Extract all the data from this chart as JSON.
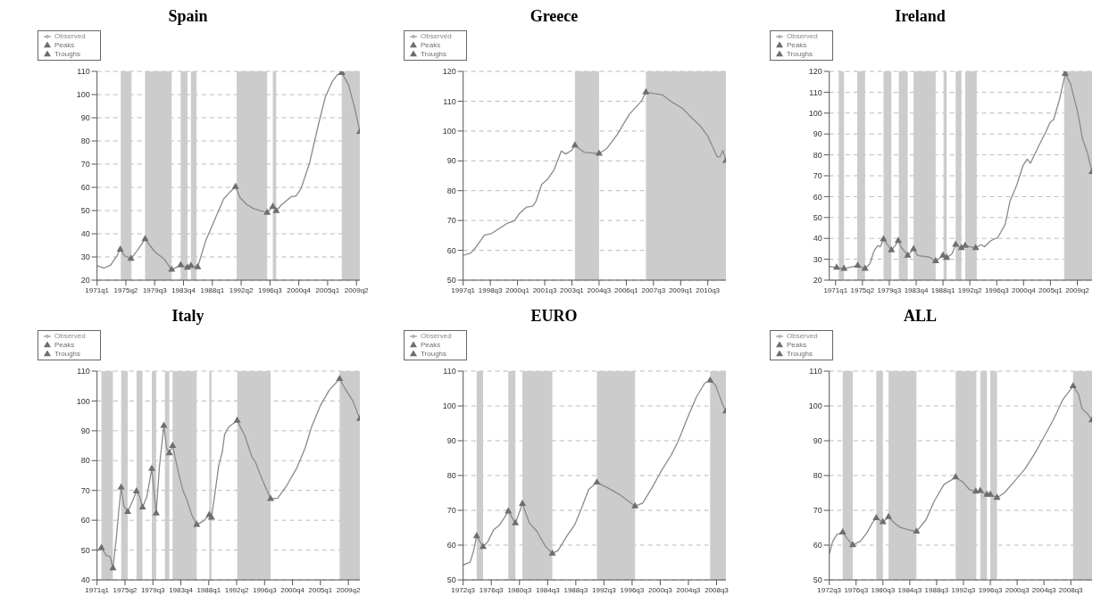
{
  "chart_data": [
    {
      "type": "line",
      "title": "Spain",
      "grid": "y",
      "legend": "top left",
      "xlim": [
        "1971-01",
        "2009-10"
      ],
      "ylim": [
        20,
        110
      ],
      "yticks": [
        20,
        30,
        40,
        50,
        60,
        70,
        80,
        90,
        100,
        110
      ],
      "xticks": [
        {
          "value": "1971-01",
          "label": "1971q1"
        },
        {
          "value": "1975-04",
          "label": "1975q2"
        },
        {
          "value": "1979-07",
          "label": "1979q3"
        },
        {
          "value": "1983-10",
          "label": "1983q4"
        },
        {
          "value": "1988-01",
          "label": "1988q1"
        },
        {
          "value": "1992-04",
          "label": "1992q2"
        },
        {
          "value": "1996-07",
          "label": "1996q3"
        },
        {
          "value": "2000-10",
          "label": "2000q4"
        },
        {
          "value": "2005-01",
          "label": "2005q1"
        },
        {
          "value": "2009-04",
          "label": "2009q2"
        }
      ],
      "bands": [
        {
          "axis": "x",
          "from": "1974-07",
          "to": "1976-02",
          "color": "#cccccc"
        },
        {
          "axis": "x",
          "from": "1978-02",
          "to": "1982-01",
          "color": "#cccccc"
        },
        {
          "axis": "x",
          "from": "1983-05",
          "to": "1984-05",
          "color": "#cccccc"
        },
        {
          "axis": "x",
          "from": "1984-11",
          "to": "1985-09",
          "color": "#cccccc"
        },
        {
          "axis": "x",
          "from": "1991-08",
          "to": "1996-02",
          "color": "#cccccc"
        },
        {
          "axis": "x",
          "from": "1996-12",
          "to": "1997-06",
          "color": "#cccccc"
        },
        {
          "axis": "x",
          "from": "2007-02",
          "to": "2009-10",
          "color": "#cccccc"
        }
      ],
      "series": [
        {
          "name": "Observed",
          "color": "#8a8a8a",
          "x": [
            "1971-01",
            "1972-01",
            "1973-01",
            "1973-12",
            "1974-06",
            "1975-02",
            "1976-01",
            "1977-01",
            "1978-02",
            "1979-07",
            "1980-12",
            "1982-01",
            "1983-05",
            "1984-05",
            "1984-11",
            "1985-11",
            "1987-01",
            "1988-05",
            "1989-09",
            "1990-09",
            "1991-06",
            "1992-02",
            "1993-02",
            "1994-02",
            "1996-02",
            "1996-12",
            "1997-06",
            "1998-03",
            "1999-08",
            "2000-05",
            "2001-02",
            "2002-05",
            "2003-09",
            "2004-09",
            "2005-09",
            "2006-06",
            "2007-02",
            "2008-02",
            "2009-02",
            "2009-10"
          ],
          "values": [
            26.2,
            25.2,
            26.5,
            30.4,
            33.2,
            30.4,
            29.3,
            33,
            37.7,
            32.3,
            29,
            24.5,
            26.5,
            25.4,
            26.2,
            25.6,
            36.8,
            46,
            55,
            58.2,
            60.2,
            55.6,
            52.6,
            50.8,
            49.1,
            51.7,
            49.8,
            52.4,
            55.9,
            56.3,
            59.5,
            70.5,
            87.4,
            99,
            105.5,
            108.5,
            109.4,
            104.2,
            93,
            84
          ]
        },
        {
          "name": "Peaks",
          "type": "scatter",
          "marker": "triangle",
          "color": "#6e6e6e",
          "x": [
            "1974-06",
            "1978-02",
            "1983-05",
            "1984-11",
            "1991-06",
            "1996-12",
            "2007-02"
          ],
          "values": [
            33.2,
            37.7,
            26.5,
            26.2,
            60.2,
            51.7,
            109.4
          ]
        },
        {
          "name": "Troughs",
          "type": "scatter",
          "marker": "triangle",
          "color": "#6e6e6e",
          "x": [
            "1976-01",
            "1982-01",
            "1984-05",
            "1985-11",
            "1996-02",
            "1997-06",
            "2009-10"
          ],
          "values": [
            29.3,
            24.5,
            25.4,
            25.6,
            49.1,
            49.8,
            84
          ]
        }
      ]
    },
    {
      "type": "line",
      "title": "Greece",
      "grid": "y",
      "legend": "top left",
      "xlim": [
        "1997-01",
        "2011-07"
      ],
      "ylim": [
        50,
        120
      ],
      "yticks": [
        50,
        60,
        70,
        80,
        90,
        100,
        110,
        120
      ],
      "xticks": [
        {
          "value": "1997-01",
          "label": "1997q1"
        },
        {
          "value": "1998-07",
          "label": "1998q3"
        },
        {
          "value": "2000-01",
          "label": "2000q1"
        },
        {
          "value": "2001-07",
          "label": "2001q3"
        },
        {
          "value": "2003-01",
          "label": "2003q1"
        },
        {
          "value": "2004-07",
          "label": "2004q3"
        },
        {
          "value": "2006-01",
          "label": "2006q1"
        },
        {
          "value": "2007-07",
          "label": "2007q3"
        },
        {
          "value": "2009-01",
          "label": "2009q1"
        },
        {
          "value": "2010-07",
          "label": "2010q3"
        }
      ],
      "bands": [
        {
          "axis": "x",
          "from": "2003-03",
          "to": "2004-07",
          "color": "#cccccc"
        },
        {
          "axis": "x",
          "from": "2007-02",
          "to": "2011-07",
          "color": "#cccccc"
        }
      ],
      "series": [
        {
          "name": "Observed",
          "color": "#8a8a8a",
          "x": [
            "1997-01",
            "1997-06",
            "1997-09",
            "1998-03",
            "1998-08",
            "1999-06",
            "1999-11",
            "2000-02",
            "2000-07",
            "2000-11",
            "2001-01",
            "2001-05",
            "2001-09",
            "2002-01",
            "2002-06",
            "2002-09",
            "2003-01",
            "2003-03",
            "2003-09",
            "2004-07",
            "2004-12",
            "2005-07",
            "2006-03",
            "2006-11",
            "2007-02",
            "2008-01",
            "2008-07",
            "2009-02",
            "2009-08",
            "2010-02",
            "2010-07",
            "2011-01",
            "2011-03",
            "2011-05",
            "2011-07"
          ],
          "values": [
            58.3,
            59.1,
            60.7,
            65.1,
            65.7,
            69,
            69.9,
            72.2,
            74.5,
            74.8,
            76.2,
            82.1,
            83.9,
            86.8,
            93.3,
            92.3,
            93.6,
            95.2,
            92.9,
            92.4,
            94.1,
            98.8,
            105.6,
            110,
            113,
            112.1,
            109.8,
            107.7,
            104.6,
            101.7,
            98.3,
            91.5,
            91.3,
            93.5,
            90
          ]
        },
        {
          "name": "Peaks",
          "type": "scatter",
          "marker": "triangle",
          "color": "#6e6e6e",
          "x": [
            "2003-03",
            "2007-02"
          ],
          "values": [
            95.2,
            113
          ]
        },
        {
          "name": "Troughs",
          "type": "scatter",
          "marker": "triangle",
          "color": "#6e6e6e",
          "x": [
            "2004-07",
            "2011-07"
          ],
          "values": [
            92.4,
            90
          ]
        }
      ]
    },
    {
      "type": "line",
      "title": "Ireland",
      "grid": "y",
      "legend": "top left",
      "xlim": [
        "1970-01",
        "2011-08"
      ],
      "ylim": [
        20,
        120
      ],
      "yticks": [
        20,
        30,
        40,
        50,
        60,
        70,
        80,
        90,
        100,
        110,
        120
      ],
      "xticks": [
        {
          "value": "1971-01",
          "label": "1971q1"
        },
        {
          "value": "1975-04",
          "label": "1975q2"
        },
        {
          "value": "1979-07",
          "label": "1979q3"
        },
        {
          "value": "1983-10",
          "label": "1983q4"
        },
        {
          "value": "1988-01",
          "label": "1988q1"
        },
        {
          "value": "1992-04",
          "label": "1992q2"
        },
        {
          "value": "1996-07",
          "label": "1996q3"
        },
        {
          "value": "2000-10",
          "label": "2000q4"
        },
        {
          "value": "2005-01",
          "label": "2005q1"
        },
        {
          "value": "2009-04",
          "label": "2009q2"
        }
      ],
      "bands": [
        {
          "axis": "x",
          "from": "1971-07",
          "to": "1972-05",
          "color": "#cccccc"
        },
        {
          "axis": "x",
          "from": "1974-06",
          "to": "1975-09",
          "color": "#cccccc"
        },
        {
          "axis": "x",
          "from": "1978-08",
          "to": "1979-11",
          "color": "#cccccc"
        },
        {
          "axis": "x",
          "from": "1981-01",
          "to": "1982-06",
          "color": "#cccccc"
        },
        {
          "axis": "x",
          "from": "1983-05",
          "to": "1986-11",
          "color": "#cccccc"
        },
        {
          "axis": "x",
          "from": "1988-02",
          "to": "1988-08",
          "color": "#cccccc"
        },
        {
          "axis": "x",
          "from": "1990-01",
          "to": "1990-12",
          "color": "#cccccc"
        },
        {
          "axis": "x",
          "from": "1991-07",
          "to": "1993-05",
          "color": "#cccccc"
        },
        {
          "axis": "x",
          "from": "2007-03",
          "to": "2011-08",
          "color": "#cccccc"
        }
      ],
      "series": [
        {
          "name": "Observed",
          "color": "#8a8a8a",
          "x": [
            "1970-01",
            "1971-03",
            "1972-05",
            "1974-07",
            "1975-09",
            "1976-06",
            "1977-02",
            "1977-09",
            "1978-02",
            "1978-08",
            "1979-11",
            "1980-06",
            "1980-12",
            "1981-06",
            "1982-06",
            "1983-05",
            "1984-01",
            "1985-11",
            "1986-11",
            "1988-01",
            "1988-08",
            "1989-06",
            "1990-01",
            "1990-12",
            "1991-07",
            "1993-03",
            "1994-01",
            "1994-08",
            "1995-07",
            "1996-09",
            "1997-11",
            "1998-08",
            "1999-09",
            "2000-09",
            "2001-05",
            "2001-11",
            "2003-03",
            "2004-05",
            "2004-12",
            "2005-07",
            "2006-06",
            "2007-05",
            "2008-03",
            "2009-05",
            "2010-02",
            "2010-11",
            "2011-08"
          ],
          "values": [
            26.6,
            26,
            25.5,
            27,
            25.5,
            27.8,
            34,
            36.5,
            36,
            39.6,
            34.4,
            36.5,
            38.8,
            35.7,
            31.8,
            34.9,
            31.8,
            31,
            29.1,
            31.8,
            30.7,
            32.6,
            37,
            35.4,
            36.5,
            35.4,
            37,
            36,
            38.8,
            40.4,
            46.7,
            57.7,
            65.5,
            75,
            78,
            76,
            84.4,
            91.4,
            95.4,
            96.9,
            106.3,
            118.9,
            114.2,
            100.1,
            87.5,
            81.2,
            71.8
          ]
        },
        {
          "name": "Peaks",
          "type": "scatter",
          "marker": "triangle",
          "color": "#6e6e6e",
          "x": [
            "1971-03",
            "1974-07",
            "1978-08",
            "1980-12",
            "1983-05",
            "1988-01",
            "1990-01",
            "1991-07",
            "2007-05"
          ],
          "values": [
            26,
            27,
            39.6,
            38.8,
            34.9,
            31.8,
            37,
            36.5,
            118.9
          ]
        },
        {
          "name": "Troughs",
          "type": "scatter",
          "marker": "triangle",
          "color": "#6e6e6e",
          "x": [
            "1972-05",
            "1975-09",
            "1979-11",
            "1982-06",
            "1986-11",
            "1988-08",
            "1990-12",
            "1993-03",
            "2011-08"
          ],
          "values": [
            25.5,
            25.5,
            34.4,
            31.8,
            29.1,
            30.7,
            35.4,
            35.4,
            71.8
          ]
        }
      ]
    },
    {
      "type": "line",
      "title": "Italy",
      "grid": "y",
      "legend": "top left",
      "xlim": [
        "1971-01",
        "2011-01"
      ],
      "ylim": [
        40,
        110
      ],
      "yticks": [
        40,
        50,
        60,
        70,
        80,
        90,
        100,
        110
      ],
      "xticks": [
        {
          "value": "1971-01",
          "label": "1971q1"
        },
        {
          "value": "1975-04",
          "label": "1975q2"
        },
        {
          "value": "1979-07",
          "label": "1979q3"
        },
        {
          "value": "1983-10",
          "label": "1983q4"
        },
        {
          "value": "1988-01",
          "label": "1988q1"
        },
        {
          "value": "1992-04",
          "label": "1992q2"
        },
        {
          "value": "1996-07",
          "label": "1996q3"
        },
        {
          "value": "2000-10",
          "label": "2000q4"
        },
        {
          "value": "2005-01",
          "label": "2005q1"
        },
        {
          "value": "2009-04",
          "label": "2009q2"
        }
      ],
      "bands": [
        {
          "axis": "x",
          "from": "1971-09",
          "to": "1973-06",
          "color": "#cccccc"
        },
        {
          "axis": "x",
          "from": "1974-09",
          "to": "1975-09",
          "color": "#cccccc"
        },
        {
          "axis": "x",
          "from": "1977-01",
          "to": "1977-12",
          "color": "#cccccc"
        },
        {
          "axis": "x",
          "from": "1979-05",
          "to": "1980-01",
          "color": "#cccccc"
        },
        {
          "axis": "x",
          "from": "1981-05",
          "to": "1982-01",
          "color": "#cccccc"
        },
        {
          "axis": "x",
          "from": "1982-07",
          "to": "1986-03",
          "color": "#cccccc"
        },
        {
          "axis": "x",
          "from": "1988-02",
          "to": "1988-06",
          "color": "#cccccc"
        },
        {
          "axis": "x",
          "from": "1992-05",
          "to": "1997-06",
          "color": "#cccccc"
        },
        {
          "axis": "x",
          "from": "2007-12",
          "to": "2011-01",
          "color": "#cccccc"
        }
      ],
      "series": [
        {
          "name": "Observed",
          "color": "#8a8a8a",
          "x": [
            "1971-01",
            "1971-09",
            "1972-06",
            "1973-01",
            "1973-06",
            "1973-12",
            "1974-05",
            "1974-09",
            "1975-02",
            "1975-09",
            "1976-07",
            "1977-01",
            "1977-07",
            "1977-12",
            "1978-08",
            "1979-05",
            "1980-01",
            "1980-07",
            "1981-03",
            "1981-08",
            "1982-01",
            "1982-07",
            "1983-03",
            "1984-02",
            "1984-09",
            "1985-06",
            "1986-03",
            "1987-03",
            "1988-02",
            "1988-06",
            "1989-01",
            "1989-07",
            "1990-02",
            "1990-06",
            "1991-02",
            "1992-05",
            "1993-07",
            "1994-08",
            "1995-02",
            "1996-03",
            "1997-06",
            "1998-07",
            "1999-11",
            "2001-06",
            "2002-09",
            "2003-09",
            "2005-01",
            "2006-05",
            "2007-12",
            "2008-11",
            "2009-12",
            "2011-01"
          ],
          "values": [
            49.7,
            50.7,
            48.2,
            47.8,
            43.9,
            53.6,
            63.8,
            71,
            64.8,
            62.8,
            66.9,
            69.7,
            67.9,
            64.3,
            67.9,
            77.3,
            62.3,
            78.1,
            91.7,
            84.2,
            82.5,
            85,
            78.1,
            69.9,
            66.9,
            61.8,
            58.5,
            59.7,
            61.8,
            60.9,
            69.9,
            78.1,
            83.2,
            88.8,
            91.4,
            93.4,
            88.3,
            81.2,
            79.6,
            73.5,
            67.2,
            67.4,
            71.5,
            77.6,
            84.2,
            91.4,
            98.5,
            103.6,
            107.4,
            103.8,
            100.1,
            94
          ]
        },
        {
          "name": "Peaks",
          "type": "scatter",
          "marker": "triangle",
          "color": "#6e6e6e",
          "x": [
            "1971-09",
            "1974-09",
            "1977-01",
            "1979-05",
            "1981-03",
            "1982-07",
            "1988-02",
            "1992-05",
            "2007-12"
          ],
          "values": [
            50.7,
            71,
            69.7,
            77.3,
            91.7,
            85,
            61.8,
            93.4,
            107.4
          ]
        },
        {
          "name": "Troughs",
          "type": "scatter",
          "marker": "triangle",
          "color": "#6e6e6e",
          "x": [
            "1973-06",
            "1975-09",
            "1977-12",
            "1980-01",
            "1982-01",
            "1986-03",
            "1988-06",
            "1997-06",
            "2011-01"
          ],
          "values": [
            43.9,
            62.8,
            64.3,
            62.3,
            82.5,
            58.5,
            60.9,
            67.2,
            94
          ]
        }
      ]
    },
    {
      "type": "line",
      "title": "EURO",
      "grid": "y",
      "legend": "top left",
      "xlim": [
        "1972-07",
        "2009-11"
      ],
      "ylim": [
        50,
        110
      ],
      "yticks": [
        50,
        60,
        70,
        80,
        90,
        100,
        110
      ],
      "xticks": [
        {
          "value": "1972-07",
          "label": "1972q3"
        },
        {
          "value": "1976-07",
          "label": "1976q3"
        },
        {
          "value": "1980-07",
          "label": "1980q3"
        },
        {
          "value": "1984-07",
          "label": "1984q3"
        },
        {
          "value": "1988-07",
          "label": "1988q3"
        },
        {
          "value": "1992-07",
          "label": "1992q3"
        },
        {
          "value": "1996-07",
          "label": "1996q3"
        },
        {
          "value": "2000-07",
          "label": "2000q3"
        },
        {
          "value": "2004-07",
          "label": "2004q3"
        },
        {
          "value": "2008-07",
          "label": "2008q3"
        }
      ],
      "bands": [
        {
          "axis": "x",
          "from": "1974-06",
          "to": "1975-05",
          "color": "#cccccc"
        },
        {
          "axis": "x",
          "from": "1978-12",
          "to": "1979-12",
          "color": "#cccccc"
        },
        {
          "axis": "x",
          "from": "1980-12",
          "to": "1985-03",
          "color": "#cccccc"
        },
        {
          "axis": "x",
          "from": "1991-07",
          "to": "1996-12",
          "color": "#cccccc"
        },
        {
          "axis": "x",
          "from": "2007-08",
          "to": "2009-11",
          "color": "#cccccc"
        }
      ],
      "series": [
        {
          "name": "Observed",
          "color": "#8a8a8a",
          "x": [
            "1972-07",
            "1973-01",
            "1973-07",
            "1974-01",
            "1974-06",
            "1975-05",
            "1976-01",
            "1976-11",
            "1977-09",
            "1978-05",
            "1978-12",
            "1979-12",
            "1980-12",
            "1981-12",
            "1983-01",
            "1984-03",
            "1985-03",
            "1986-01",
            "1987-03",
            "1988-05",
            "1989-05",
            "1990-05",
            "1991-07",
            "1993-01",
            "1994-09",
            "1995-09",
            "1996-12",
            "1998-01",
            "1999-05",
            "2000-09",
            "2002-01",
            "2003-01",
            "2004-05",
            "2005-09",
            "2006-11",
            "2007-08",
            "2008-05",
            "2009-01",
            "2009-05",
            "2009-11"
          ],
          "values": [
            54.2,
            54.7,
            55.1,
            58.5,
            62.6,
            59.5,
            61,
            64.4,
            65.8,
            67.8,
            69.7,
            66.3,
            71.9,
            66.3,
            63.9,
            59.7,
            57.6,
            58.5,
            62.4,
            65.8,
            70.7,
            76,
            78,
            76.5,
            74.6,
            73.1,
            71.2,
            72.1,
            76.5,
            81.4,
            85.7,
            89.6,
            96.4,
            102.7,
            106.6,
            107.3,
            106.1,
            102.4,
            100.5,
            98.5
          ]
        },
        {
          "name": "Peaks",
          "type": "scatter",
          "marker": "triangle",
          "color": "#6e6e6e",
          "x": [
            "1974-06",
            "1978-12",
            "1980-12",
            "1991-07",
            "2007-08"
          ],
          "values": [
            62.6,
            69.7,
            71.9,
            78,
            107.3
          ]
        },
        {
          "name": "Troughs",
          "type": "scatter",
          "marker": "triangle",
          "color": "#6e6e6e",
          "x": [
            "1975-05",
            "1979-12",
            "1985-03",
            "1996-12",
            "2009-11"
          ],
          "values": [
            59.5,
            66.3,
            57.6,
            71.2,
            98.5
          ]
        }
      ]
    },
    {
      "type": "line",
      "title": "ALL",
      "grid": "y",
      "legend": "top left",
      "xlim": [
        "1972-07",
        "2011-09"
      ],
      "ylim": [
        50,
        110
      ],
      "yticks": [
        50,
        60,
        70,
        80,
        90,
        100,
        110
      ],
      "xticks": [
        {
          "value": "1972-07",
          "label": "1972q3"
        },
        {
          "value": "1976-07",
          "label": "1976q3"
        },
        {
          "value": "1980-07",
          "label": "1980q3"
        },
        {
          "value": "1984-07",
          "label": "1984q3"
        },
        {
          "value": "1988-07",
          "label": "1988q3"
        },
        {
          "value": "1992-07",
          "label": "1992q3"
        },
        {
          "value": "1996-07",
          "label": "1996q3"
        },
        {
          "value": "2000-07",
          "label": "2000q3"
        },
        {
          "value": "2004-07",
          "label": "2004q3"
        },
        {
          "value": "2008-07",
          "label": "2008q3"
        }
      ],
      "bands": [
        {
          "axis": "x",
          "from": "1974-07",
          "to": "1976-01",
          "color": "#cccccc"
        },
        {
          "axis": "x",
          "from": "1979-07",
          "to": "1980-07",
          "color": "#cccccc"
        },
        {
          "axis": "x",
          "from": "1981-05",
          "to": "1985-07",
          "color": "#cccccc"
        },
        {
          "axis": "x",
          "from": "1991-05",
          "to": "1994-06",
          "color": "#cccccc"
        },
        {
          "axis": "x",
          "from": "1995-01",
          "to": "1996-01",
          "color": "#cccccc"
        },
        {
          "axis": "x",
          "from": "1996-07",
          "to": "1997-07",
          "color": "#cccccc"
        },
        {
          "axis": "x",
          "from": "2008-11",
          "to": "2011-09",
          "color": "#cccccc"
        }
      ],
      "series": [
        {
          "name": "Observed",
          "color": "#8a8a8a",
          "x": [
            "1972-07",
            "1973-01",
            "1973-09",
            "1974-07",
            "1975-05",
            "1976-01",
            "1977-03",
            "1978-03",
            "1978-12",
            "1979-07",
            "1980-07",
            "1981-05",
            "1982-03",
            "1983-02",
            "1984-02",
            "1985-07",
            "1986-12",
            "1988-03",
            "1989-08",
            "1991-05",
            "1992-06",
            "1993-06",
            "1994-05",
            "1995-01",
            "1996-01",
            "1996-07",
            "1997-07",
            "1998-08",
            "2000-01",
            "2001-09",
            "2003-02",
            "2004-07",
            "2005-12",
            "2007-05",
            "2008-11",
            "2009-09",
            "2010-03",
            "2010-12",
            "2011-09"
          ],
          "values": [
            57.5,
            61,
            63.1,
            63.7,
            61.5,
            60,
            61.2,
            63.7,
            66.4,
            67.8,
            66.6,
            68.1,
            66.4,
            65.1,
            64.5,
            63.9,
            67.3,
            72.7,
            77.4,
            79.5,
            78.1,
            75.9,
            75.4,
            75.6,
            74.5,
            74.5,
            73.6,
            75,
            78.1,
            81.9,
            86.2,
            91.1,
            96.1,
            101.9,
            105.7,
            103.3,
            99.2,
            97.9,
            95.9
          ]
        },
        {
          "name": "Peaks",
          "type": "scatter",
          "marker": "triangle",
          "color": "#6e6e6e",
          "x": [
            "1974-07",
            "1979-07",
            "1981-05",
            "1991-05",
            "1995-01",
            "1996-07",
            "2008-11"
          ],
          "values": [
            63.7,
            67.8,
            68.1,
            79.5,
            75.6,
            74.5,
            105.7
          ]
        },
        {
          "name": "Troughs",
          "type": "scatter",
          "marker": "triangle",
          "color": "#6e6e6e",
          "x": [
            "1976-01",
            "1980-07",
            "1985-07",
            "1994-05",
            "1996-01",
            "1997-07",
            "2011-09"
          ],
          "values": [
            60,
            66.6,
            63.9,
            75.4,
            74.5,
            73.6,
            95.9
          ]
        }
      ]
    }
  ]
}
